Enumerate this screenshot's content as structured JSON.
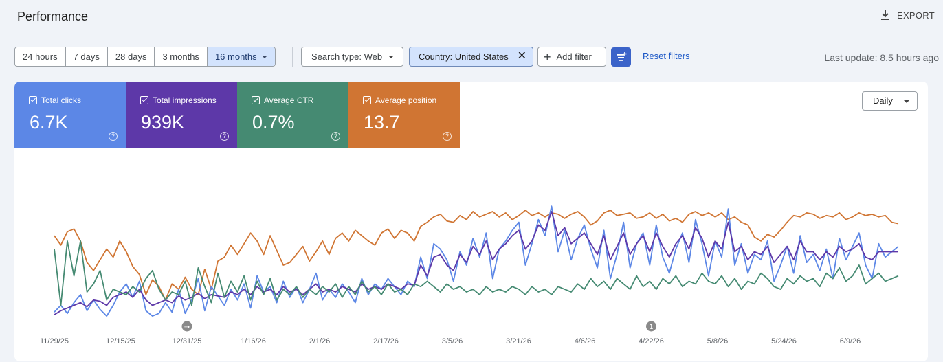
{
  "page": {
    "title": "Performance",
    "export_label": "EXPORT"
  },
  "date_range": {
    "options": [
      "24 hours",
      "7 days",
      "28 days",
      "3 months",
      "16 months"
    ],
    "selected": "16 months"
  },
  "filters": {
    "search_type": "Search type: Web",
    "country": "Country: United States",
    "add_filter": "Add filter",
    "reset": "Reset filters"
  },
  "last_update": "Last update: 8.5 hours ago",
  "metrics": [
    {
      "label": "Total clicks",
      "value": "6.7K",
      "color": "#5c87e6"
    },
    {
      "label": "Total impressions",
      "value": "939K",
      "color": "#5d38a8"
    },
    {
      "label": "Average CTR",
      "value": "0.7%",
      "color": "#458a72"
    },
    {
      "label": "Average position",
      "value": "13.7",
      "color": "#d07533"
    }
  ],
  "granularity": "Daily",
  "annotations": [
    {
      "date": "12/31/25",
      "symbol": "→"
    },
    {
      "date": "4/22/26",
      "symbol": "1"
    }
  ],
  "chart_data": {
    "type": "line",
    "x_tick_labels": [
      "11/29/25",
      "12/15/25",
      "12/31/25",
      "1/16/26",
      "2/1/26",
      "2/17/26",
      "3/5/26",
      "3/21/26",
      "4/6/26",
      "4/22/26",
      "5/8/26",
      "5/24/26",
      "6/9/26"
    ],
    "x_range": [
      "11/29/25",
      "6/21/26"
    ],
    "series": [
      {
        "name": "Average position",
        "color": "#d07533",
        "values": [
          0.62,
          0.55,
          0.65,
          0.67,
          0.58,
          0.42,
          0.36,
          0.44,
          0.52,
          0.46,
          0.58,
          0.5,
          0.39,
          0.33,
          0.18,
          0.29,
          0.24,
          0.14,
          0.26,
          0.22,
          0.31,
          0.22,
          0.18,
          0.37,
          0.22,
          0.43,
          0.46,
          0.55,
          0.48,
          0.56,
          0.64,
          0.58,
          0.48,
          0.62,
          0.51,
          0.4,
          0.42,
          0.48,
          0.54,
          0.43,
          0.5,
          0.58,
          0.48,
          0.6,
          0.64,
          0.58,
          0.66,
          0.62,
          0.58,
          0.55,
          0.64,
          0.67,
          0.6,
          0.66,
          0.64,
          0.58,
          0.69,
          0.72,
          0.76,
          0.78,
          0.73,
          0.72,
          0.77,
          0.74,
          0.8,
          0.76,
          0.78,
          0.8,
          0.76,
          0.79,
          0.74,
          0.77,
          0.81,
          0.77,
          0.79,
          0.76,
          0.79,
          0.78,
          0.75,
          0.78,
          0.8,
          0.76,
          0.7,
          0.73,
          0.79,
          0.81,
          0.77,
          0.78,
          0.79,
          0.75,
          0.76,
          0.79,
          0.75,
          0.78,
          0.73,
          0.75,
          0.72,
          0.78,
          0.8,
          0.77,
          0.79,
          0.76,
          0.79,
          0.74,
          0.76,
          0.72,
          0.7,
          0.61,
          0.58,
          0.63,
          0.61,
          0.66,
          0.72,
          0.77,
          0.76,
          0.79,
          0.78,
          0.75,
          0.77,
          0.76,
          0.79,
          0.74,
          0.76,
          0.79,
          0.77,
          0.78,
          0.76,
          0.77,
          0.72,
          0.71
        ]
      },
      {
        "name": "Total clicks",
        "color": "#5c87e6",
        "values": [
          0.05,
          0.1,
          0.04,
          0.12,
          0.18,
          0.06,
          0.14,
          0.07,
          0.02,
          0.1,
          0.2,
          0.26,
          0.16,
          0.28,
          0.06,
          0.02,
          0.04,
          0.12,
          0.05,
          0.22,
          0.04,
          0.14,
          0.3,
          0.06,
          0.24,
          0.17,
          0.1,
          0.22,
          0.14,
          0.26,
          0.08,
          0.32,
          0.2,
          0.24,
          0.12,
          0.28,
          0.16,
          0.24,
          0.12,
          0.22,
          0.34,
          0.14,
          0.22,
          0.16,
          0.26,
          0.2,
          0.12,
          0.3,
          0.18,
          0.26,
          0.22,
          0.3,
          0.24,
          0.18,
          0.28,
          0.24,
          0.46,
          0.3,
          0.56,
          0.52,
          0.44,
          0.28,
          0.5,
          0.4,
          0.6,
          0.46,
          0.64,
          0.3,
          0.52,
          0.58,
          0.66,
          0.72,
          0.4,
          0.56,
          0.74,
          0.62,
          0.84,
          0.5,
          0.66,
          0.44,
          0.6,
          0.7,
          0.52,
          0.38,
          0.66,
          0.3,
          0.48,
          0.72,
          0.38,
          0.56,
          0.64,
          0.4,
          0.7,
          0.46,
          0.34,
          0.52,
          0.64,
          0.42,
          0.74,
          0.56,
          0.32,
          0.58,
          0.46,
          0.82,
          0.4,
          0.56,
          0.34,
          0.48,
          0.44,
          0.58,
          0.28,
          0.4,
          0.54,
          0.34,
          0.62,
          0.42,
          0.48,
          0.36,
          0.52,
          0.3,
          0.6,
          0.44,
          0.54,
          0.64,
          0.4,
          0.3,
          0.56,
          0.46,
          0.5,
          0.54
        ]
      },
      {
        "name": "Total impressions",
        "color": "#5d38a8",
        "values": [
          0.03,
          0.06,
          0.08,
          0.1,
          0.12,
          0.09,
          0.14,
          0.13,
          0.1,
          0.16,
          0.18,
          0.2,
          0.16,
          0.22,
          0.14,
          0.1,
          0.12,
          0.14,
          0.12,
          0.17,
          0.14,
          0.16,
          0.19,
          0.15,
          0.18,
          0.17,
          0.16,
          0.2,
          0.18,
          0.22,
          0.18,
          0.24,
          0.2,
          0.22,
          0.18,
          0.24,
          0.2,
          0.22,
          0.18,
          0.22,
          0.26,
          0.2,
          0.22,
          0.2,
          0.24,
          0.22,
          0.2,
          0.26,
          0.22,
          0.24,
          0.22,
          0.26,
          0.24,
          0.22,
          0.26,
          0.25,
          0.4,
          0.32,
          0.46,
          0.48,
          0.4,
          0.36,
          0.48,
          0.42,
          0.54,
          0.48,
          0.58,
          0.44,
          0.52,
          0.56,
          0.62,
          0.66,
          0.52,
          0.58,
          0.7,
          0.66,
          0.8,
          0.62,
          0.68,
          0.56,
          0.6,
          0.64,
          0.56,
          0.48,
          0.62,
          0.44,
          0.54,
          0.64,
          0.48,
          0.56,
          0.62,
          0.5,
          0.64,
          0.54,
          0.46,
          0.56,
          0.62,
          0.52,
          0.68,
          0.6,
          0.46,
          0.58,
          0.52,
          0.72,
          0.5,
          0.54,
          0.44,
          0.5,
          0.48,
          0.54,
          0.42,
          0.48,
          0.54,
          0.44,
          0.58,
          0.5,
          0.5,
          0.44,
          0.5,
          0.46,
          0.54,
          0.5,
          0.52,
          0.56,
          0.46,
          0.44,
          0.5,
          0.5,
          0.5,
          0.5
        ]
      },
      {
        "name": "Average CTR",
        "color": "#458a72",
        "values": [
          0.52,
          0.1,
          0.58,
          0.32,
          0.58,
          0.2,
          0.26,
          0.36,
          0.14,
          0.22,
          0.2,
          0.18,
          0.24,
          0.2,
          0.3,
          0.36,
          0.22,
          0.14,
          0.2,
          0.18,
          0.28,
          0.1,
          0.38,
          0.24,
          0.12,
          0.34,
          0.16,
          0.28,
          0.2,
          0.32,
          0.14,
          0.28,
          0.18,
          0.3,
          0.14,
          0.22,
          0.18,
          0.24,
          0.16,
          0.22,
          0.18,
          0.24,
          0.2,
          0.26,
          0.16,
          0.24,
          0.18,
          0.28,
          0.2,
          0.24,
          0.18,
          0.26,
          0.2,
          0.22,
          0.18,
          0.26,
          0.24,
          0.28,
          0.24,
          0.2,
          0.26,
          0.22,
          0.24,
          0.2,
          0.22,
          0.18,
          0.24,
          0.2,
          0.22,
          0.2,
          0.24,
          0.22,
          0.18,
          0.24,
          0.2,
          0.22,
          0.18,
          0.24,
          0.22,
          0.2,
          0.26,
          0.22,
          0.3,
          0.24,
          0.28,
          0.22,
          0.3,
          0.26,
          0.22,
          0.32,
          0.24,
          0.28,
          0.22,
          0.3,
          0.26,
          0.32,
          0.24,
          0.28,
          0.26,
          0.34,
          0.28,
          0.26,
          0.32,
          0.24,
          0.3,
          0.22,
          0.28,
          0.26,
          0.34,
          0.3,
          0.24,
          0.22,
          0.3,
          0.26,
          0.32,
          0.28,
          0.3,
          0.24,
          0.34,
          0.3,
          0.38,
          0.28,
          0.32,
          0.4,
          0.26,
          0.3,
          0.34,
          0.28,
          0.3,
          0.32
        ]
      }
    ],
    "y_ticks_visible": false,
    "grid": false
  }
}
